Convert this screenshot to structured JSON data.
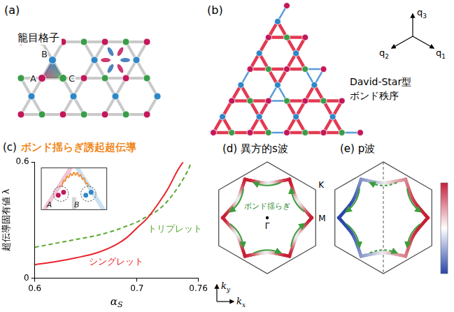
{
  "panel_a": {
    "label": "(a)",
    "title": "籠目格子",
    "sites": [
      "A",
      "B",
      "C"
    ]
  },
  "panel_b": {
    "label": "(b)",
    "title_lines": [
      "David-Star型",
      "ボンド秩序"
    ],
    "vectors": [
      "q1",
      "q2",
      "q3"
    ]
  },
  "chart_data": {
    "type": "line",
    "label": "(c)",
    "title": "ボンド揺らぎ誘起超伝導",
    "x_label": "αS",
    "y_label": "超伝導固有値 λ",
    "xlim": [
      0.6,
      0.76
    ],
    "xticks": [
      0.6,
      0.7,
      0.76
    ],
    "ylim": [
      0,
      0.6
    ],
    "yticks": [
      0,
      0.6
    ],
    "grid": false,
    "series": [
      {
        "name": "シングレット",
        "color": "#e8252c",
        "line_style": "solid",
        "x": [
          0.6,
          0.62,
          0.64,
          0.66,
          0.68,
          0.69,
          0.7,
          0.71,
          0.72,
          0.73,
          0.74,
          0.745
        ],
        "values": [
          0.07,
          0.085,
          0.105,
          0.13,
          0.175,
          0.21,
          0.26,
          0.31,
          0.38,
          0.46,
          0.56,
          0.6
        ]
      },
      {
        "name": "トリプレット",
        "color": "#5aa832",
        "line_style": "dashed",
        "x": [
          0.6,
          0.62,
          0.64,
          0.66,
          0.68,
          0.69,
          0.7,
          0.71,
          0.72,
          0.73,
          0.74,
          0.75,
          0.753
        ],
        "values": [
          0.16,
          0.18,
          0.2,
          0.22,
          0.25,
          0.27,
          0.29,
          0.32,
          0.35,
          0.4,
          0.47,
          0.56,
          0.6
        ]
      }
    ],
    "inset": {
      "labels": [
        "A",
        "B"
      ]
    }
  },
  "panel_d": {
    "label": "(d)",
    "title": "異方的s波",
    "annotation": "ボンド揺らぎ",
    "points": [
      "K",
      "M",
      "Γ"
    ],
    "k_axes": [
      "kx",
      "ky"
    ]
  },
  "panel_e": {
    "label": "(e)",
    "title": "p波"
  }
}
